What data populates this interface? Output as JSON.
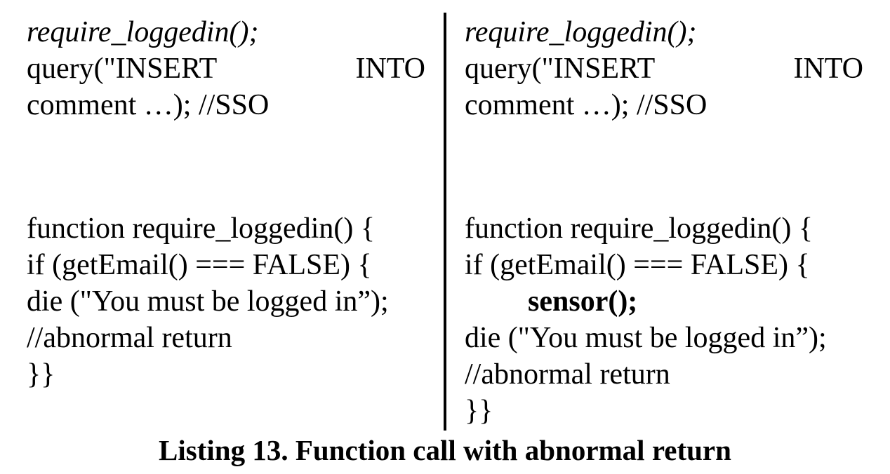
{
  "left": {
    "call_line": "require_loggedin();",
    "query_word1": "query(\"INSERT",
    "query_word2": "INTO",
    "comment_line": "comment …); //SSO",
    "func_decl": "function require_loggedin() {",
    "if_line": "if (getEmail() === FALSE) {",
    "die_line": "die (\"You must be logged in”);",
    "abnormal_comment": "//abnormal return",
    "closing": "}}"
  },
  "right": {
    "call_line": "require_loggedin();",
    "query_word1": "query(\"INSERT",
    "query_word2": "INTO",
    "comment_line": "comment …); //SSO",
    "func_decl": "function require_loggedin() {",
    "if_line": "if (getEmail() === FALSE) {",
    "sensor_line": "sensor();",
    "die_line": "die (\"You must be logged in”);",
    "abnormal_comment": "//abnormal return",
    "closing": "}}"
  },
  "caption": "Listing 13. Function call with abnormal return"
}
